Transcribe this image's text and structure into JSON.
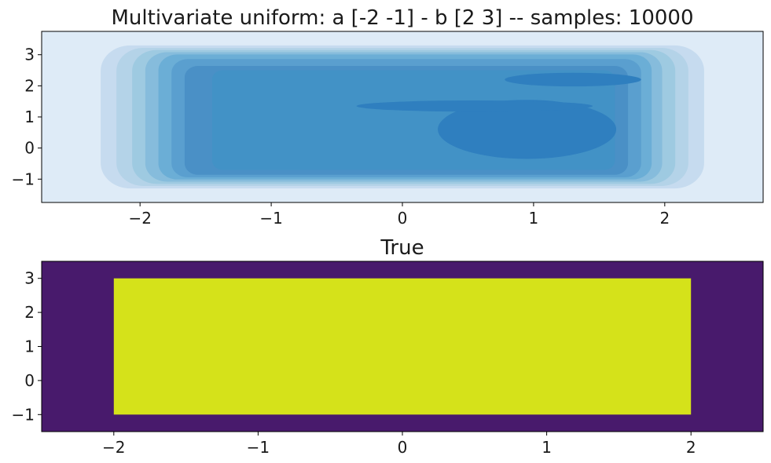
{
  "chart_data": [
    {
      "type": "contour",
      "title": "Multivariate uniform: a [-2 -1] - b [2 3] -- samples: 10000",
      "xlabel": "",
      "ylabel": "",
      "xlim": [
        -2.75,
        2.75
      ],
      "ylim": [
        -1.75,
        3.75
      ],
      "xticks": [
        -2,
        -1,
        0,
        1,
        2
      ],
      "xtick_labels": [
        "−2",
        "−1",
        "0",
        "1",
        "2"
      ],
      "yticks": [
        -1,
        0,
        1,
        2,
        3
      ],
      "ytick_labels": [
        "−1",
        "0",
        "1",
        "2",
        "3"
      ],
      "grid": false,
      "colormap": "Blues",
      "level_colors": [
        "#deebf7",
        "#c6dbef",
        "#b4d3e8",
        "#9ecae1",
        "#86bcdc",
        "#6baed6",
        "#5a9fcf",
        "#4a90c6",
        "#4292c6",
        "#2f7fbf"
      ],
      "levels": [
        {
          "x0": -2.3,
          "x1": 2.3,
          "y0": -1.3,
          "y1": 3.3
        },
        {
          "x0": -2.18,
          "x1": 2.18,
          "y0": -1.22,
          "y1": 3.22
        },
        {
          "x0": -2.06,
          "x1": 2.08,
          "y0": -1.15,
          "y1": 3.15
        },
        {
          "x0": -1.96,
          "x1": 1.98,
          "y0": -1.08,
          "y1": 3.08
        },
        {
          "x0": -1.86,
          "x1": 1.9,
          "y0": -1.01,
          "y1": 3.01
        },
        {
          "x0": -1.76,
          "x1": 1.82,
          "y0": -0.94,
          "y1": 2.86
        },
        {
          "x0": -1.66,
          "x1": 1.72,
          "y0": -0.86,
          "y1": 2.64
        },
        {
          "x0": -1.45,
          "x1": 1.62,
          "y0": -0.7,
          "y1": 2.5
        }
      ],
      "blobs": [
        {
          "cx": 0.95,
          "cy": 0.6,
          "rx": 0.68,
          "ry": 0.95,
          "level": 9
        },
        {
          "cx": 1.3,
          "cy": 2.2,
          "rx": 0.52,
          "ry": 0.22,
          "level": 9
        },
        {
          "cx": 0.55,
          "cy": 1.35,
          "rx": 0.9,
          "ry": 0.18,
          "level": 9
        }
      ]
    },
    {
      "type": "heatmap",
      "title": "True",
      "xlabel": "",
      "ylabel": "",
      "xlim": [
        -2.5,
        2.5
      ],
      "ylim": [
        -1.5,
        3.5
      ],
      "xticks": [
        -2,
        -1,
        0,
        1,
        2
      ],
      "xtick_labels": [
        "−2",
        "−1",
        "0",
        "1",
        "2"
      ],
      "yticks": [
        -1,
        0,
        1,
        2,
        3
      ],
      "ytick_labels": [
        "−1",
        "0",
        "1",
        "2",
        "3"
      ],
      "grid": false,
      "colormap": "viridis",
      "background_value": 0,
      "background_color": "#481a6c",
      "regions": [
        {
          "x0": -2,
          "x1": 2,
          "y0": -1,
          "y1": 3,
          "value": 1,
          "color": "#d5e21a"
        }
      ]
    }
  ]
}
